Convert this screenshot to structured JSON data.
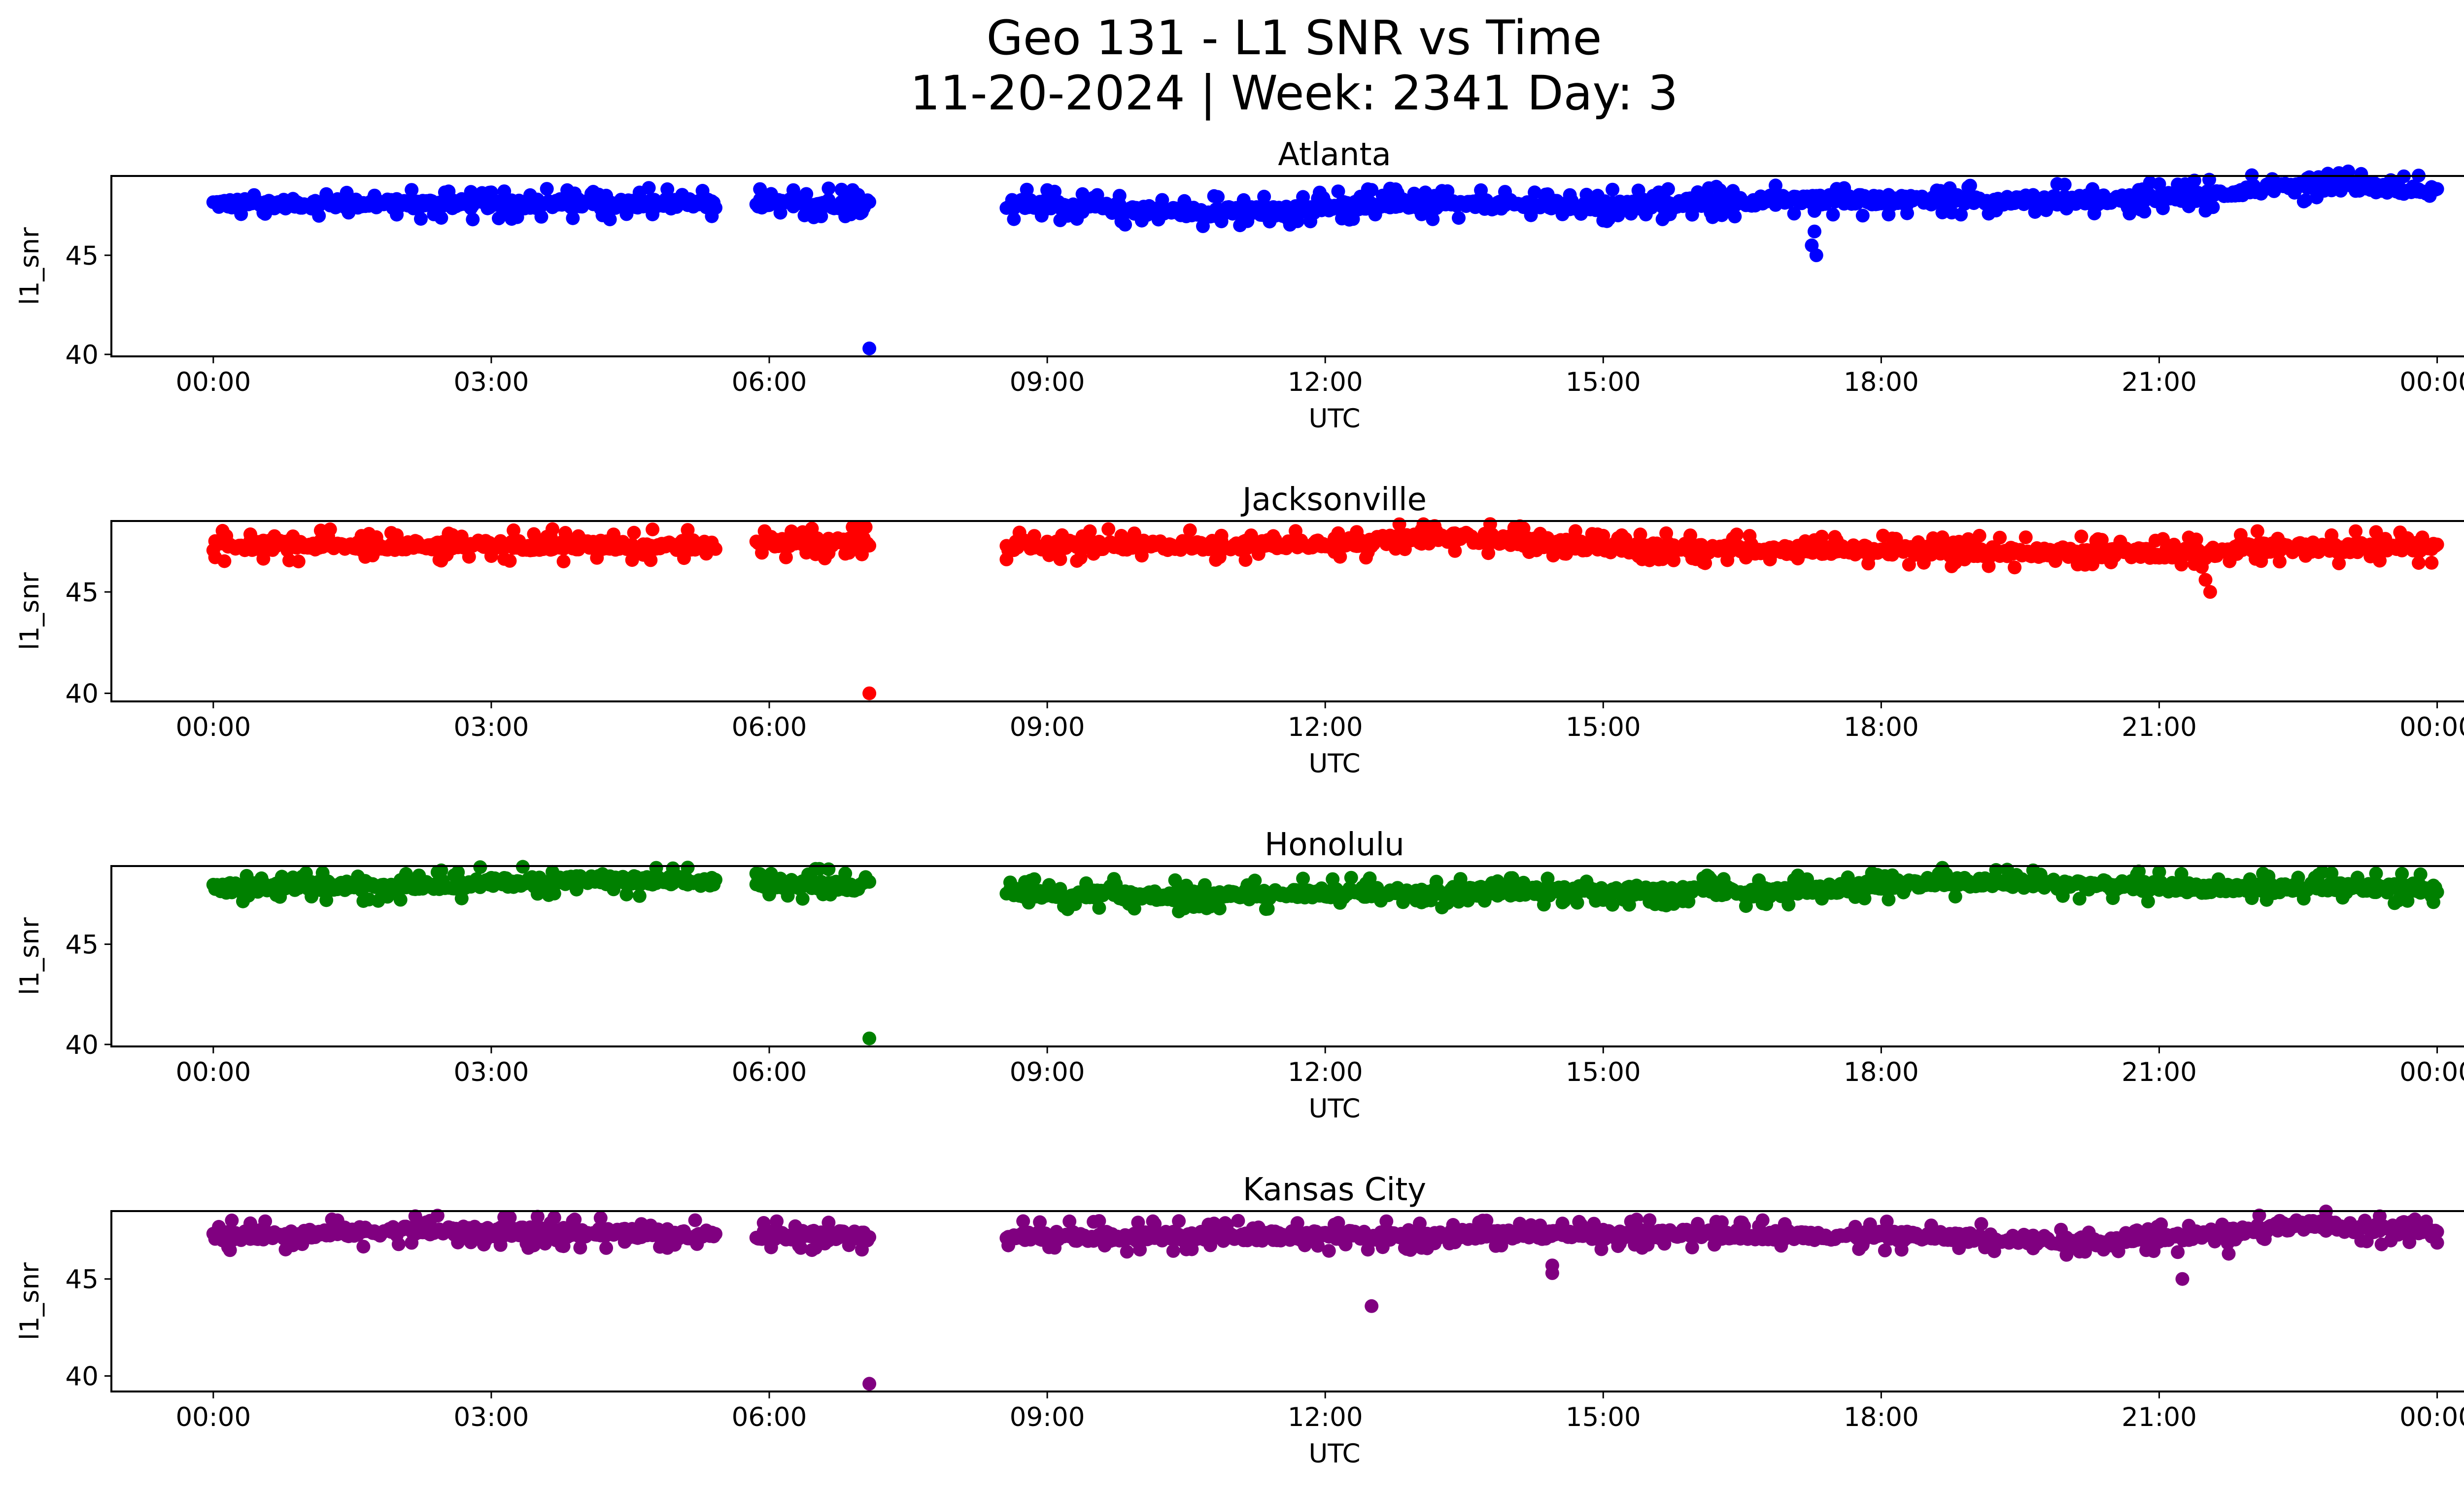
{
  "chart_data": {
    "type": "scatter",
    "title_line1": "Geo 131 - L1 SNR vs Time",
    "title_line2": "11-20-2024 | Week: 2341 Day: 3",
    "xlabel": "UTC",
    "ylabel": "l1_snr",
    "xlim_hours": [
      -1.1,
      25.3
    ],
    "x_ticks": [
      {
        "hour": 0,
        "label": "00:00"
      },
      {
        "hour": 3,
        "label": "03:00"
      },
      {
        "hour": 6,
        "label": "06:00"
      },
      {
        "hour": 9,
        "label": "09:00"
      },
      {
        "hour": 12,
        "label": "12:00"
      },
      {
        "hour": 15,
        "label": "15:00"
      },
      {
        "hour": 18,
        "label": "18:00"
      },
      {
        "hour": 21,
        "label": "21:00"
      },
      {
        "hour": 24,
        "label": "00:00"
      }
    ],
    "y_ticks": [
      40,
      45
    ],
    "data_gaps_hours": [
      [
        5.42,
        5.85
      ],
      [
        7.08,
        8.55
      ]
    ],
    "panels": [
      {
        "station": "Atlanta",
        "color": "#0000ff",
        "ylim": [
          39.9,
          49.0
        ],
        "trend": [
          [
            0.0,
            47.6
          ],
          [
            5.4,
            47.6
          ],
          [
            5.9,
            47.6
          ],
          [
            7.0,
            47.6
          ],
          [
            8.55,
            47.6
          ],
          [
            9.5,
            47.4
          ],
          [
            10.5,
            47.2
          ],
          [
            11.5,
            47.2
          ],
          [
            12.5,
            47.6
          ],
          [
            15.0,
            47.5
          ],
          [
            17.0,
            47.8
          ],
          [
            19.0,
            47.8
          ],
          [
            20.5,
            47.8
          ],
          [
            21.5,
            48.0
          ],
          [
            22.0,
            48.3
          ],
          [
            23.0,
            48.5
          ],
          [
            24.0,
            48.2
          ]
        ],
        "outliers": [
          [
            7.08,
            40.3
          ],
          [
            17.3,
            45.0
          ],
          [
            17.25,
            45.5
          ],
          [
            17.28,
            46.2
          ],
          [
            9.8,
            46.7
          ],
          [
            10.2,
            46.8
          ],
          [
            11.4,
            46.7
          ],
          [
            15.0,
            47.1
          ],
          [
            20.8,
            47.3
          ],
          [
            12.5,
            48.3
          ]
        ]
      },
      {
        "station": "Jacksonville",
        "color": "#ff0000",
        "ylim": [
          39.6,
          48.5
        ],
        "trend": [
          [
            0.0,
            47.3
          ],
          [
            5.4,
            47.3
          ],
          [
            5.9,
            47.5
          ],
          [
            7.0,
            47.4
          ],
          [
            8.55,
            47.3
          ],
          [
            11.0,
            47.3
          ],
          [
            12.5,
            47.5
          ],
          [
            13.5,
            47.7
          ],
          [
            14.5,
            47.4
          ],
          [
            15.0,
            47.2
          ],
          [
            17.0,
            47.1
          ],
          [
            19.0,
            47.0
          ],
          [
            21.5,
            46.9
          ],
          [
            22.0,
            47.2
          ],
          [
            24.0,
            47.2
          ]
        ],
        "outliers": [
          [
            7.08,
            40.0
          ],
          [
            21.55,
            45.0
          ],
          [
            21.5,
            45.6
          ],
          [
            21.45,
            46.3
          ],
          [
            5.95,
            48.0
          ],
          [
            13.2,
            48.0
          ],
          [
            15.6,
            46.6
          ],
          [
            16.8,
            46.6
          ],
          [
            18.9,
            46.6
          ]
        ]
      },
      {
        "station": "Honolulu",
        "color": "#008000",
        "ylim": [
          39.9,
          48.9
        ],
        "trend": [
          [
            0.0,
            47.8
          ],
          [
            2.5,
            48.0
          ],
          [
            4.0,
            48.2
          ],
          [
            5.4,
            48.1
          ],
          [
            5.9,
            48.1
          ],
          [
            7.0,
            47.9
          ],
          [
            8.55,
            47.6
          ],
          [
            10.5,
            47.4
          ],
          [
            12.5,
            47.6
          ],
          [
            15.0,
            47.7
          ],
          [
            17.0,
            47.6
          ],
          [
            18.5,
            48.1
          ],
          [
            20.0,
            48.0
          ],
          [
            21.5,
            47.8
          ],
          [
            24.0,
            47.8
          ]
        ],
        "outliers": [
          [
            7.08,
            40.3
          ],
          [
            5.9,
            48.5
          ],
          [
            4.2,
            48.5
          ],
          [
            18.7,
            48.5
          ],
          [
            9.3,
            47.0
          ],
          [
            10.6,
            47.0
          ],
          [
            22.0,
            47.3
          ]
        ]
      },
      {
        "station": "Kansas City",
        "color": "#800080",
        "ylim": [
          39.2,
          48.5
        ],
        "trend": [
          [
            0.0,
            47.2
          ],
          [
            2.0,
            47.5
          ],
          [
            5.4,
            47.3
          ],
          [
            5.9,
            47.3
          ],
          [
            7.0,
            47.2
          ],
          [
            8.55,
            47.2
          ],
          [
            11.0,
            47.2
          ],
          [
            13.5,
            47.3
          ],
          [
            16.0,
            47.3
          ],
          [
            18.5,
            47.2
          ],
          [
            20.5,
            46.9
          ],
          [
            21.5,
            47.3
          ],
          [
            22.5,
            47.8
          ],
          [
            24.0,
            47.4
          ]
        ],
        "outliers": [
          [
            7.08,
            39.6
          ],
          [
            12.5,
            43.6
          ],
          [
            14.45,
            45.3
          ],
          [
            14.45,
            45.7
          ],
          [
            21.25,
            45.0
          ],
          [
            21.75,
            46.3
          ],
          [
            20.2,
            46.4
          ],
          [
            3.4,
            46.6
          ],
          [
            4.9,
            46.6
          ],
          [
            2.2,
            48.0
          ],
          [
            22.3,
            48.0
          ]
        ]
      }
    ]
  }
}
